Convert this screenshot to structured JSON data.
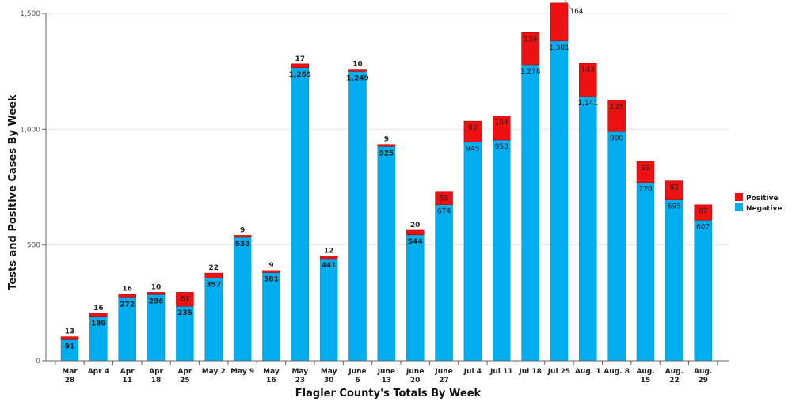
{
  "chart_data": {
    "type": "bar",
    "stacked": true,
    "xlabel": "Flagler County's Totals By Week",
    "ylabel": "Tests and Positive Cases By Week",
    "ylim": [
      0,
      1500
    ],
    "yticks": [
      "0",
      "500",
      "1,000",
      "1,500"
    ],
    "ytick_values": [
      0,
      500,
      1000,
      1500
    ],
    "legend_position": "right",
    "categories": [
      [
        "Mar",
        "28"
      ],
      [
        "Apr 4"
      ],
      [
        "Apr",
        "11"
      ],
      [
        "Apr",
        "18"
      ],
      [
        "Apr",
        "25"
      ],
      [
        "May 2"
      ],
      [
        "May 9"
      ],
      [
        "May",
        "16"
      ],
      [
        "May",
        "23"
      ],
      [
        "May",
        "30"
      ],
      [
        "June",
        "6"
      ],
      [
        "June",
        "13"
      ],
      [
        "June",
        "20"
      ],
      [
        "June",
        "27"
      ],
      [
        "Jul 4"
      ],
      [
        "Jul 11"
      ],
      [
        "Jul 18"
      ],
      [
        "Jul 25"
      ],
      [
        "Aug. 1"
      ],
      [
        "Aug. 8"
      ],
      [
        "Aug.",
        "15"
      ],
      [
        "Aug.",
        "22"
      ],
      [
        "Aug.",
        "29"
      ]
    ],
    "series": [
      {
        "name": "Negative",
        "color": "#00adef",
        "values": [
          91,
          189,
          272,
          286,
          235,
          357,
          533,
          381,
          1265,
          441,
          1249,
          925,
          544,
          674,
          945,
          953,
          1278,
          1381,
          1141,
          990,
          770,
          695,
          607
        ],
        "labels": [
          "91",
          "189",
          "272",
          "286",
          "235",
          "357",
          "533",
          "381",
          "1,265",
          "441",
          "1,249",
          "925",
          "544",
          "674",
          "945",
          "953",
          "1,278",
          "1,381",
          "1,141",
          "990",
          "770",
          "695",
          "607"
        ]
      },
      {
        "name": "Positive",
        "color": "#ee1111",
        "values": [
          13,
          16,
          16,
          10,
          61,
          22,
          9,
          9,
          17,
          12,
          10,
          9,
          20,
          55,
          90,
          104,
          139,
          164,
          143,
          135,
          91,
          82,
          67
        ],
        "labels": [
          "13",
          "16",
          "16",
          "10",
          "61",
          "22",
          "9",
          "9",
          "17",
          "12",
          "10",
          "9",
          "20",
          "55",
          "90",
          "104",
          "139",
          "164",
          "143",
          "135",
          "91",
          "82",
          "67"
        ]
      }
    ]
  }
}
